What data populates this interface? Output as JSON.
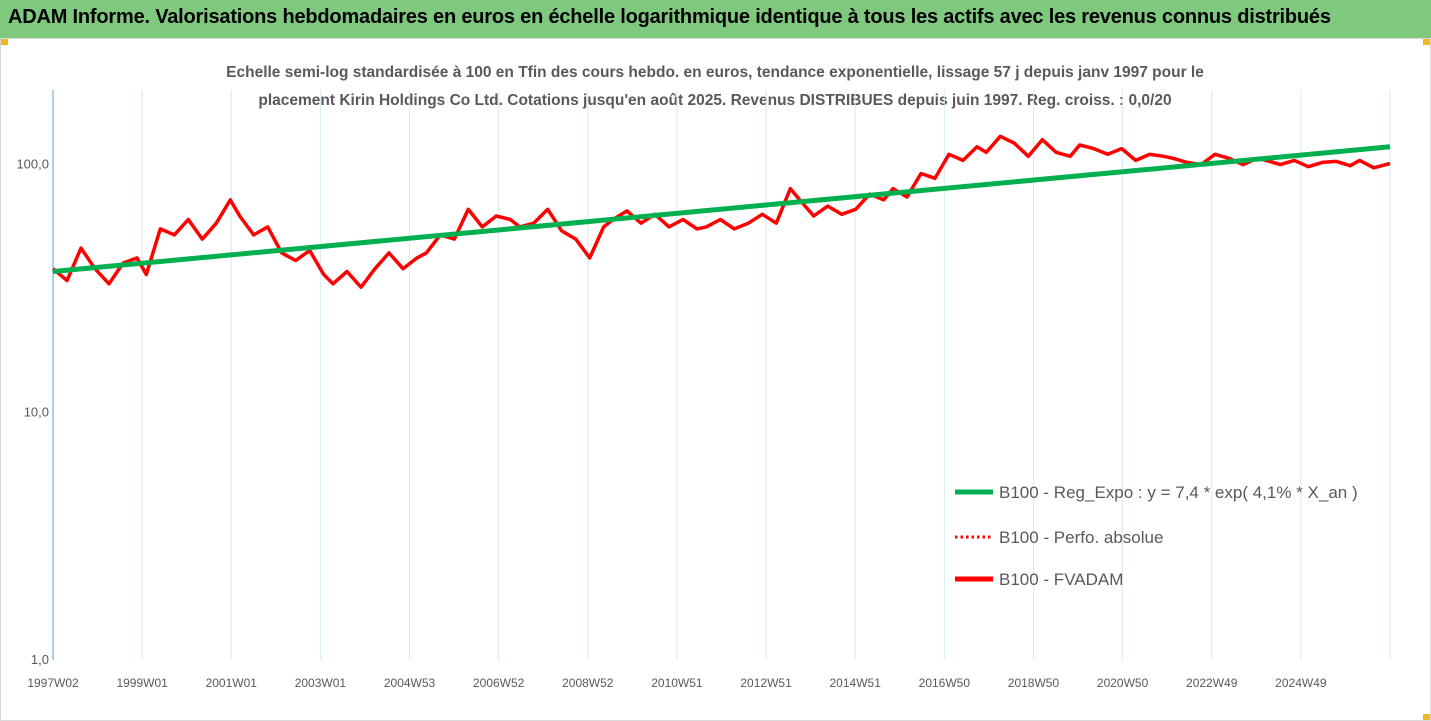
{
  "header": {
    "title": "ADAM Informe. Valorisations hebdomadaires en euros en échelle logarithmique identique à tous les actifs avec les revenus connus distribués"
  },
  "colors": {
    "header_bg": "#7fc97f",
    "accent": "#f2b81e",
    "regression": "#00b050",
    "perf": "#ff0000",
    "fvadam": "#ff0000",
    "grid": "#d6ecf7",
    "axis": "#5b9bd5"
  },
  "chart_data": {
    "type": "line",
    "title_line1": "Echelle semi-log standardisée à 100 en Tfin des cours hebdo. en euros, tendance exponentielle, lissage 57 j depuis janv 1997 pour le",
    "title_line2": "placement Kirin Holdings Co Ltd. Cotations jusqu'en août 2025. Revenus DISTRIBUES depuis juin 1997. Reg. croiss. : 0,0/20",
    "y_scale": "log",
    "ylim": [
      1,
      200
    ],
    "y_ticks": [
      {
        "value": 1,
        "label": "1,0"
      },
      {
        "value": 10,
        "label": "10,0"
      },
      {
        "value": 100,
        "label": "100,0"
      }
    ],
    "x_range_years": [
      1997.0,
      2025.65
    ],
    "x_tick_labels": [
      "1997W02",
      "1999W01",
      "2001W01",
      "2003W01",
      "2004W53",
      "2006W52",
      "2008W52",
      "2010W51",
      "2012W51",
      "2014W51",
      "2016W50",
      "2018W50",
      "2020W50",
      "2022W49",
      "2024W49"
    ],
    "grid": "vertical",
    "legend_position": "bottom-right",
    "series": [
      {
        "name": "B100 - Reg_Expo : y = 7,4 * exp( 4,1% *  X_an )",
        "style": "solid-green",
        "x": [
          1997.0,
          2025.65
        ],
        "y": [
          37,
          118
        ]
      },
      {
        "name": "B100 - Perfo. absolue",
        "style": "dotted-red",
        "x": [],
        "y": []
      },
      {
        "name": "B100 - FVADAM",
        "style": "solid-red",
        "x": [
          1997.0,
          1997.3,
          1997.6,
          1997.9,
          1998.2,
          1998.5,
          1998.8,
          1999.0,
          1999.3,
          1999.6,
          1999.9,
          2000.2,
          2000.5,
          2000.8,
          2001.0,
          2001.3,
          2001.6,
          2001.9,
          2002.2,
          2002.5,
          2002.8,
          2003.0,
          2003.3,
          2003.6,
          2003.9,
          2004.2,
          2004.5,
          2004.8,
          2005.0,
          2005.3,
          2005.6,
          2005.9,
          2006.2,
          2006.5,
          2006.8,
          2007.0,
          2007.3,
          2007.6,
          2007.9,
          2008.2,
          2008.5,
          2008.8,
          2009.0,
          2009.3,
          2009.6,
          2009.9,
          2010.2,
          2010.5,
          2010.8,
          2011.0,
          2011.3,
          2011.6,
          2011.9,
          2012.2,
          2012.5,
          2012.8,
          2013.0,
          2013.3,
          2013.6,
          2013.9,
          2014.2,
          2014.5,
          2014.8,
          2015.0,
          2015.3,
          2015.6,
          2015.9,
          2016.2,
          2016.5,
          2016.8,
          2017.0,
          2017.3,
          2017.6,
          2017.9,
          2018.2,
          2018.5,
          2018.8,
          2019.0,
          2019.3,
          2019.6,
          2019.9,
          2020.2,
          2020.5,
          2020.8,
          2021.0,
          2021.3,
          2021.6,
          2021.9,
          2022.2,
          2022.5,
          2022.8,
          2023.0,
          2023.3,
          2023.6,
          2023.9,
          2024.2,
          2024.5,
          2024.8,
          2025.0,
          2025.3,
          2025.65
        ],
        "y": [
          38,
          34,
          46,
          38,
          33,
          40,
          42,
          36,
          55,
          52,
          60,
          50,
          58,
          72,
          62,
          52,
          56,
          44,
          41,
          45,
          36,
          33,
          37,
          32,
          38,
          44,
          38,
          42,
          44,
          52,
          50,
          66,
          56,
          62,
          60,
          56,
          58,
          66,
          54,
          50,
          42,
          56,
          60,
          65,
          58,
          63,
          56,
          60,
          55,
          56,
          60,
          55,
          58,
          63,
          58,
          80,
          72,
          62,
          68,
          63,
          66,
          76,
          72,
          80,
          74,
          92,
          88,
          110,
          104,
          118,
          112,
          130,
          122,
          108,
          126,
          112,
          108,
          120,
          116,
          110,
          116,
          104,
          110,
          108,
          106,
          102,
          100,
          110,
          106,
          100,
          106,
          104,
          100,
          104,
          98,
          102,
          103,
          99,
          104,
          97,
          101
        ]
      }
    ]
  }
}
